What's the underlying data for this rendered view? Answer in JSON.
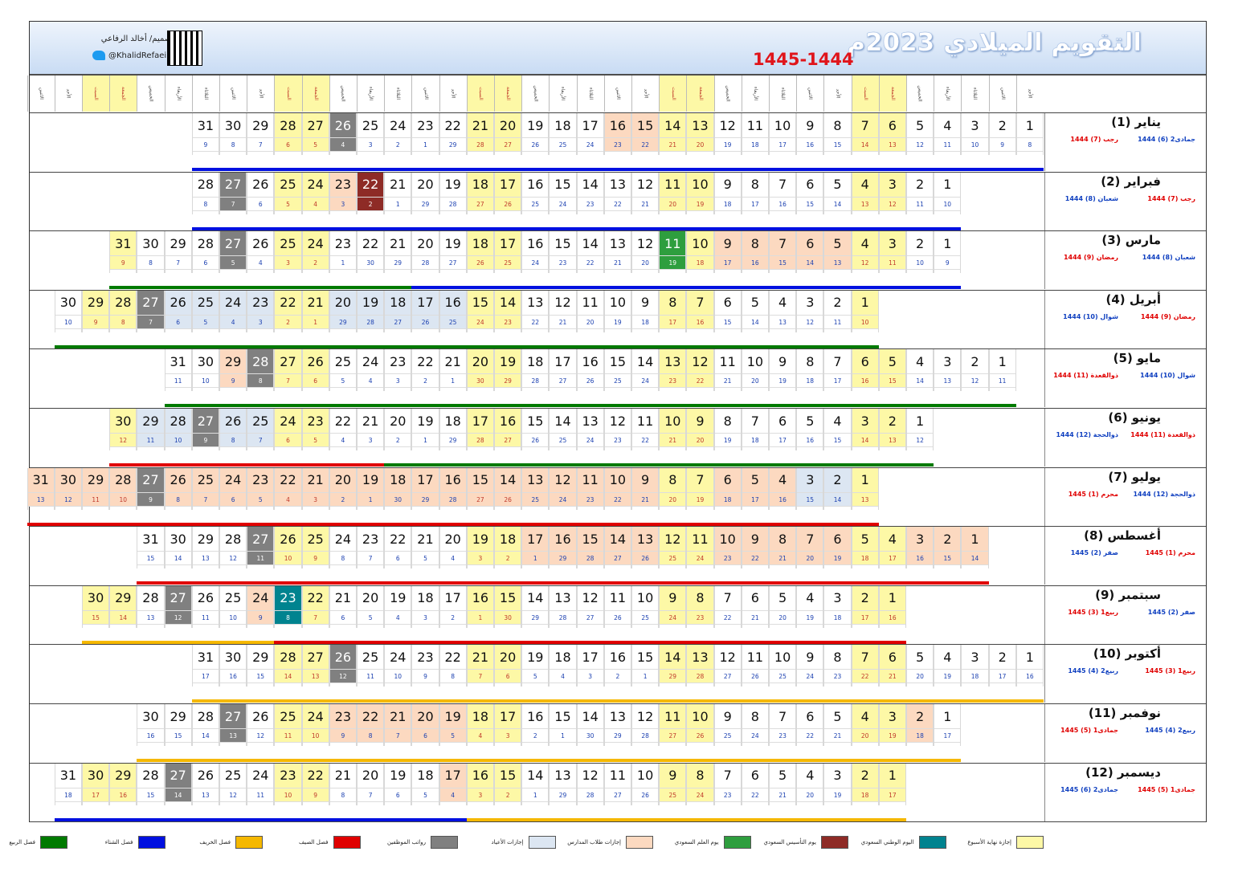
{
  "header": {
    "title": "التقويم الميلادي 2023م",
    "hijri_years": "1445-1444",
    "designer": "تصميم/ أخالد الرفاعي",
    "twitter": "@KhalidRefaei"
  },
  "weekdays": [
    "الأحد",
    "الاثنين",
    "الثلاثاء",
    "الأربعاء",
    "الخميس",
    "الجمعة",
    "السبت"
  ],
  "colors": {
    "weekend": "#fdf8a6",
    "national_day": "#00838f",
    "founding_day": "#8e2b26",
    "flag_day": "#2e9e3e",
    "student_vacation": "#fcd9c0",
    "holiday": "#dce6f2",
    "salary": "#808080",
    "summer": "#e00000",
    "autumn": "#f5b800",
    "winter": "#0010e0",
    "spring": "#007a00"
  },
  "months": [
    {
      "name": "يناير (1)",
      "start": 0,
      "days": 31,
      "h": [
        "8",
        "9",
        "10",
        "11",
        "12",
        "13",
        "14",
        "15",
        "16",
        "17",
        "18",
        "19",
        "20",
        "21",
        "22",
        "23",
        "24",
        "25",
        "26",
        "27",
        "28",
        "29",
        "1",
        "2",
        "3",
        "4",
        "5",
        "6",
        "7",
        "8",
        "9"
      ],
      "h1": "جمادى2 (6) 1444",
      "h1c": "#1040c0",
      "h2": "رجب (7) 1444",
      "h2c": "#e00000",
      "line": [
        [
          0,
          31,
          "#0010e0"
        ]
      ]
    },
    {
      "name": "فبراير (2)",
      "start": 3,
      "days": 28,
      "h": [
        "10",
        "11",
        "12",
        "13",
        "14",
        "15",
        "16",
        "17",
        "18",
        "19",
        "20",
        "21",
        "22",
        "23",
        "24",
        "25",
        "26",
        "27",
        "28",
        "29",
        "1",
        "2",
        "3",
        "4",
        "5",
        "6",
        "7",
        "8"
      ],
      "h1": "رجب (7) 1444",
      "h1c": "#e00000",
      "h2": "شعبان (8) 1444",
      "h2c": "#1040c0",
      "line": [
        [
          0,
          28,
          "#0010e0"
        ]
      ]
    },
    {
      "name": "مارس (3)",
      "start": 3,
      "days": 31,
      "h": [
        "9",
        "10",
        "11",
        "12",
        "13",
        "14",
        "15",
        "16",
        "17",
        "18",
        "19",
        "20",
        "21",
        "22",
        "23",
        "24",
        "25",
        "26",
        "27",
        "28",
        "29",
        "30",
        "1",
        "2",
        "3",
        "4",
        "5",
        "6",
        "7",
        "8",
        "9"
      ],
      "h1": "شعبان (8) 1444",
      "h1c": "#1040c0",
      "h2": "رمضان (9) 1444",
      "h2c": "#e00000",
      "line": [
        [
          0,
          20,
          "#0010e0"
        ],
        [
          20,
          31,
          "#007a00"
        ]
      ]
    },
    {
      "name": "أبريل (4)",
      "start": 6,
      "days": 30,
      "h": [
        "10",
        "11",
        "12",
        "13",
        "14",
        "15",
        "16",
        "17",
        "18",
        "19",
        "20",
        "21",
        "22",
        "23",
        "24",
        "25",
        "26",
        "27",
        "28",
        "29",
        "1",
        "2",
        "3",
        "4",
        "5",
        "6",
        "7",
        "8",
        "9",
        "10"
      ],
      "h1": "رمضان (9) 1444",
      "h1c": "#e00000",
      "h2": "شوال (10) 1444",
      "h2c": "#1040c0",
      "line": [
        [
          0,
          30,
          "#007a00"
        ]
      ]
    },
    {
      "name": "مايو (5)",
      "start": 1,
      "days": 31,
      "h": [
        "11",
        "12",
        "13",
        "14",
        "15",
        "16",
        "17",
        "18",
        "19",
        "20",
        "21",
        "22",
        "23",
        "24",
        "25",
        "26",
        "27",
        "28",
        "29",
        "30",
        "1",
        "2",
        "3",
        "4",
        "5",
        "6",
        "7",
        "8",
        "9",
        "10",
        "11"
      ],
      "h1": "شوال (10) 1444",
      "h1c": "#1040c0",
      "h2": "ذوالقعدة (11) 1444",
      "h2c": "#e00000",
      "line": [
        [
          0,
          31,
          "#007a00"
        ]
      ]
    },
    {
      "name": "يونيو (6)",
      "start": 4,
      "days": 30,
      "h": [
        "12",
        "13",
        "14",
        "15",
        "16",
        "17",
        "18",
        "19",
        "20",
        "21",
        "22",
        "23",
        "24",
        "25",
        "26",
        "27",
        "28",
        "29",
        "1",
        "2",
        "3",
        "4",
        "5",
        "6",
        "7",
        "8",
        "9",
        "10",
        "11",
        "12"
      ],
      "h1": "ذوالقعدة (11) 1444",
      "h1c": "#e00000",
      "h2": "ذوالحجة (12) 1444",
      "h2c": "#1040c0",
      "line": [
        [
          0,
          20,
          "#007a00"
        ],
        [
          20,
          30,
          "#e00000"
        ]
      ]
    },
    {
      "name": "يوليو (7)",
      "start": 6,
      "days": 31,
      "h": [
        "13",
        "14",
        "15",
        "16",
        "17",
        "18",
        "19",
        "20",
        "21",
        "22",
        "23",
        "24",
        "25",
        "26",
        "27",
        "28",
        "29",
        "30",
        "1",
        "2",
        "3",
        "4",
        "5",
        "6",
        "7",
        "8",
        "9",
        "10",
        "11",
        "12",
        "13"
      ],
      "h1": "ذوالحجة (12) 1444",
      "h1c": "#1040c0",
      "h2": "محرم (1) 1445",
      "h2c": "#e00000",
      "line": [
        [
          0,
          31,
          "#e00000"
        ]
      ]
    },
    {
      "name": "أغسطس (8)",
      "start": 2,
      "days": 31,
      "h": [
        "14",
        "15",
        "16",
        "17",
        "18",
        "19",
        "20",
        "21",
        "22",
        "23",
        "24",
        "25",
        "26",
        "27",
        "28",
        "29",
        "1",
        "2",
        "3",
        "4",
        "5",
        "6",
        "7",
        "8",
        "9",
        "10",
        "11",
        "12",
        "13",
        "14",
        "15"
      ],
      "h1": "محرم (1) 1445",
      "h1c": "#e00000",
      "h2": "صفر (2) 1445",
      "h2c": "#1040c0",
      "line": [
        [
          0,
          31,
          "#e00000"
        ]
      ]
    },
    {
      "name": "سبتمبر (9)",
      "start": 5,
      "days": 30,
      "h": [
        "16",
        "17",
        "18",
        "19",
        "20",
        "21",
        "22",
        "23",
        "24",
        "25",
        "26",
        "27",
        "28",
        "29",
        "30",
        "1",
        "2",
        "3",
        "4",
        "5",
        "6",
        "7",
        "8",
        "9",
        "10",
        "11",
        "12",
        "13",
        "14",
        "15"
      ],
      "h1": "صفر (2) 1445",
      "h1c": "#1040c0",
      "h2": "ربيع1 (3) 1445",
      "h2c": "#e00000",
      "line": [
        [
          0,
          23,
          "#e00000"
        ],
        [
          23,
          30,
          "#f5b800"
        ]
      ]
    },
    {
      "name": "أكتوبر (10)",
      "start": 0,
      "days": 31,
      "h": [
        "16",
        "17",
        "18",
        "19",
        "20",
        "21",
        "22",
        "23",
        "24",
        "25",
        "26",
        "27",
        "28",
        "29",
        "1",
        "2",
        "3",
        "4",
        "5",
        "6",
        "7",
        "8",
        "9",
        "10",
        "11",
        "12",
        "13",
        "14",
        "15",
        "16",
        "17"
      ],
      "h1": "ربيع1 (3) 1445",
      "h1c": "#e00000",
      "h2": "ربيع2 (4) 1445",
      "h2c": "#1040c0",
      "line": [
        [
          0,
          31,
          "#f5b800"
        ]
      ]
    },
    {
      "name": "نوفمبر (11)",
      "start": 3,
      "days": 30,
      "h": [
        "17",
        "18",
        "19",
        "20",
        "21",
        "22",
        "23",
        "24",
        "25",
        "26",
        "27",
        "28",
        "29",
        "30",
        "1",
        "2",
        "3",
        "4",
        "5",
        "6",
        "7",
        "8",
        "9",
        "10",
        "11",
        "12",
        "13",
        "14",
        "15",
        "16"
      ],
      "h1": "ربيع2 (4) 1445",
      "h1c": "#1040c0",
      "h2": "جمادى1 (5) 1445",
      "h2c": "#e00000",
      "line": [
        [
          0,
          30,
          "#f5b800"
        ]
      ]
    },
    {
      "name": "ديسمبر (12)",
      "start": 5,
      "days": 31,
      "h": [
        "17",
        "18",
        "19",
        "20",
        "21",
        "22",
        "23",
        "24",
        "25",
        "26",
        "27",
        "28",
        "29",
        "1",
        "2",
        "3",
        "4",
        "5",
        "6",
        "7",
        "8",
        "9",
        "10",
        "11",
        "12",
        "13",
        "14",
        "15",
        "16",
        "17",
        "18"
      ],
      "h1": "جمادى1 (5) 1445",
      "h1c": "#e00000",
      "h2": "جمادى2 (6) 1445",
      "h2c": "#1040c0",
      "line": [
        [
          0,
          16,
          "#f5b800"
        ],
        [
          16,
          31,
          "#0010e0"
        ]
      ]
    }
  ],
  "specials": {
    "0": {
      "15": "student",
      "16": "student",
      "26": "salary"
    },
    "1": {
      "22": "founding",
      "23": "student",
      "27": "salary"
    },
    "2": {
      "5": "student",
      "6": "student",
      "7": "student",
      "8": "student",
      "9": "student",
      "11": "flag",
      "27": "salary"
    },
    "3": {
      "16": "holiday",
      "17": "holiday",
      "18": "holiday",
      "19": "holiday",
      "20": "holiday",
      "23": "holiday",
      "24": "holiday",
      "25": "holiday",
      "26": "holiday",
      "27": "salary"
    },
    "4": {
      "28": "salary",
      "29": "student"
    },
    "5": {
      "25": "holiday",
      "26": "holiday",
      "27": "salary",
      "28": "holiday",
      "29": "holiday"
    },
    "6": {
      "2": "holiday",
      "3": "holiday",
      "4": "student",
      "5": "student",
      "6": "student",
      "9": "student",
      "10": "student",
      "11": "student",
      "12": "student",
      "13": "student",
      "14": "student",
      "15": "student",
      "16": "student",
      "17": "student",
      "18": "student",
      "19": "student",
      "20": "student",
      "21": "student",
      "22": "student",
      "23": "student",
      "24": "student",
      "25": "student",
      "26": "student",
      "27": "salary",
      "28": "student",
      "29": "student",
      "30": "student",
      "31": "student"
    },
    "7": {
      "1": "student",
      "2": "student",
      "3": "student",
      "6": "student",
      "7": "student",
      "8": "student",
      "9": "student",
      "10": "student",
      "13": "student",
      "14": "student",
      "15": "student",
      "16": "student",
      "17": "student",
      "27": "salary"
    },
    "8": {
      "23": "national",
      "24": "student",
      "27": "salary"
    },
    "9": {
      "26": "salary"
    },
    "10": {
      "2": "student",
      "19": "student",
      "20": "student",
      "21": "student",
      "22": "student",
      "23": "student",
      "27": "salary"
    },
    "11": {
      "17": "student",
      "27": "salary"
    }
  },
  "legend": [
    {
      "label": "إجازة نهاية الأسبوع",
      "color": "#fdf8a6"
    },
    {
      "label": "اليوم الوطني السعودي",
      "color": "#00838f"
    },
    {
      "label": "يوم التأسيس السعودي",
      "color": "#8e2b26"
    },
    {
      "label": "يوم العلم السعودي",
      "color": "#2e9e3e"
    },
    {
      "label": "إجازات طلاب المدارس",
      "color": "#fcd9c0"
    },
    {
      "label": "إجازات الأعياد",
      "color": "#dce6f2"
    },
    {
      "label": "رواتب الموظفين",
      "color": "#808080"
    },
    {
      "label": "فصل الصيف",
      "color": "#e00000"
    },
    {
      "label": "فصل الخريف",
      "color": "#f5b800"
    },
    {
      "label": "فصل الشتاء",
      "color": "#0010e0"
    },
    {
      "label": "فصل الربيع",
      "color": "#007a00"
    }
  ]
}
